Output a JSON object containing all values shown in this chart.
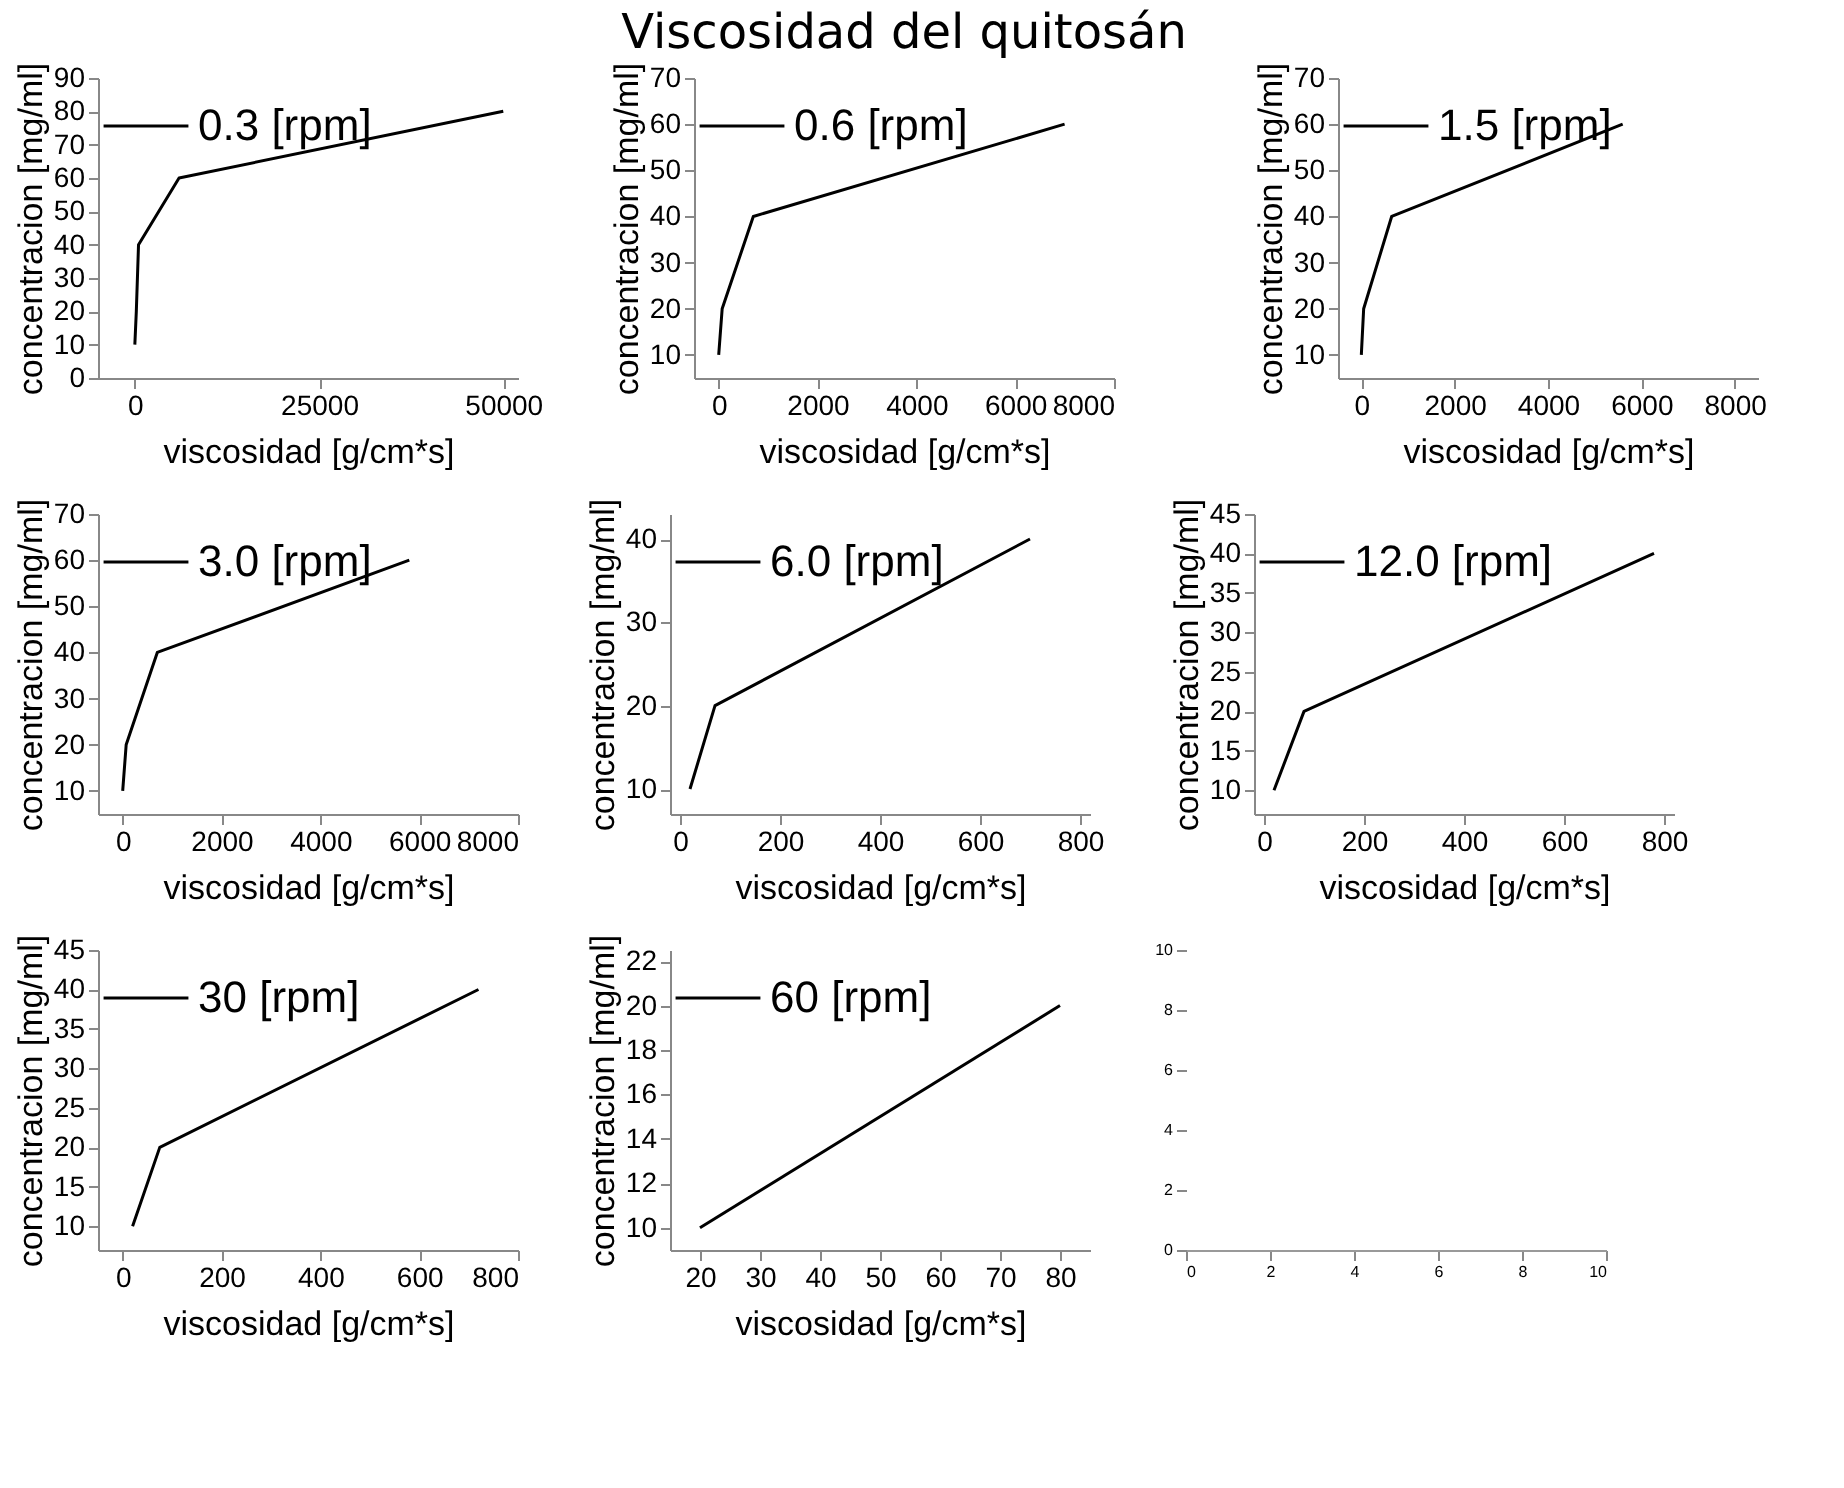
{
  "chart_data": [
    {
      "type": "line",
      "xlabel": "viscosidad [g/cm*s]",
      "ylabel": "concentracion [mg/ml]",
      "legend": "top left",
      "xlim": [
        -5000,
        52000
      ],
      "ylim": [
        0,
        90
      ],
      "xticks": [
        0,
        25000,
        50000
      ],
      "yticks": [
        0,
        10,
        20,
        30,
        40,
        50,
        60,
        70,
        80,
        90
      ],
      "series": [
        {
          "name": "0.3 [rpm]",
          "color": "#000000",
          "x": [
            0,
            200,
            500,
            6000,
            50000
          ],
          "values": [
            10,
            20,
            40,
            60,
            80
          ]
        }
      ]
    },
    {
      "type": "line",
      "title": "Viscosidad del quitosán",
      "xlabel": "viscosidad [g/cm*s]",
      "ylabel": "concentracion [mg/ml]",
      "legend": "top left",
      "xlim": [
        -500,
        8000
      ],
      "ylim": [
        5,
        70
      ],
      "xticks": [
        0,
        2000,
        4000,
        6000,
        8000
      ],
      "yticks": [
        10,
        20,
        30,
        40,
        50,
        60,
        70
      ],
      "series": [
        {
          "name": "0.6 [rpm]",
          "color": "#000000",
          "x": [
            0,
            70,
            700,
            7000
          ],
          "values": [
            10,
            20,
            40,
            60
          ]
        }
      ]
    },
    {
      "type": "line",
      "xlabel": "viscosidad [g/cm*s]",
      "ylabel": "concentracion [mg/ml]",
      "legend": "top left",
      "xlim": [
        -500,
        8500
      ],
      "ylim": [
        5,
        70
      ],
      "xticks": [
        0,
        2000,
        4000,
        6000,
        8000
      ],
      "yticks": [
        10,
        20,
        30,
        40,
        50,
        60,
        70
      ],
      "series": [
        {
          "name": "1.5 [rpm]",
          "color": "#000000",
          "x": [
            0,
            50,
            650,
            5600
          ],
          "values": [
            10,
            20,
            40,
            60
          ]
        }
      ]
    },
    {
      "type": "line",
      "xlabel": "viscosidad [g/cm*s]",
      "ylabel": "concentracion [mg/ml]",
      "legend": "top left",
      "xlim": [
        -500,
        8000
      ],
      "ylim": [
        5,
        70
      ],
      "xticks": [
        0,
        2000,
        4000,
        6000,
        8000
      ],
      "yticks": [
        10,
        20,
        30,
        40,
        50,
        60,
        70
      ],
      "series": [
        {
          "name": "3.0 [rpm]",
          "color": "#000000",
          "x": [
            0,
            70,
            700,
            5800
          ],
          "values": [
            10,
            20,
            40,
            60
          ]
        }
      ]
    },
    {
      "type": "line",
      "xlabel": "viscosidad [g/cm*s]",
      "ylabel": "concentracion [mg/ml]",
      "legend": "top left",
      "xlim": [
        -20,
        820
      ],
      "ylim": [
        7,
        43
      ],
      "xticks": [
        0,
        200,
        400,
        600,
        800
      ],
      "yticks": [
        10,
        20,
        30,
        40
      ],
      "series": [
        {
          "name": "6.0 [rpm]",
          "color": "#000000",
          "x": [
            20,
            70,
            700
          ],
          "values": [
            10,
            20,
            40
          ]
        }
      ]
    },
    {
      "type": "line",
      "xlabel": "viscosidad [g/cm*s]",
      "ylabel": "concentracion [mg/ml]",
      "legend": "top left",
      "xlim": [
        -20,
        820
      ],
      "ylim": [
        7,
        45
      ],
      "xticks": [
        0,
        200,
        400,
        600,
        800
      ],
      "yticks": [
        10,
        15,
        20,
        25,
        30,
        35,
        40,
        45
      ],
      "series": [
        {
          "name": "12.0 [rpm]",
          "color": "#000000",
          "x": [
            20,
            80,
            780
          ],
          "values": [
            10,
            20,
            40
          ]
        }
      ]
    },
    {
      "type": "line",
      "xlabel": "viscosidad [g/cm*s]",
      "ylabel": "concentracion [mg/ml]",
      "legend": "top left",
      "xlim": [
        -50,
        800
      ],
      "ylim": [
        7,
        45
      ],
      "xticks": [
        0,
        200,
        400,
        600,
        800
      ],
      "yticks": [
        10,
        15,
        20,
        25,
        30,
        35,
        40,
        45
      ],
      "series": [
        {
          "name": "30 [rpm]",
          "color": "#000000",
          "x": [
            20,
            75,
            720
          ],
          "values": [
            10,
            20,
            40
          ]
        }
      ]
    },
    {
      "type": "line",
      "xlabel": "viscosidad [g/cm*s]",
      "ylabel": "concentracion [mg/ml]",
      "legend": "top left",
      "xlim": [
        15,
        85
      ],
      "ylim": [
        9,
        22.5
      ],
      "xticks": [
        20,
        30,
        40,
        50,
        60,
        70,
        80
      ],
      "yticks": [
        10,
        12,
        14,
        16,
        18,
        20,
        22
      ],
      "series": [
        {
          "name": "60 [rpm]",
          "color": "#000000",
          "x": [
            20,
            80
          ],
          "values": [
            10,
            20
          ]
        }
      ]
    },
    {
      "type": "line",
      "xlim": [
        0,
        10
      ],
      "ylim": [
        0,
        10
      ],
      "xticks": [
        0,
        2,
        4,
        6,
        8,
        10
      ],
      "yticks": [
        0,
        2,
        4,
        6,
        8,
        10
      ]
    }
  ]
}
